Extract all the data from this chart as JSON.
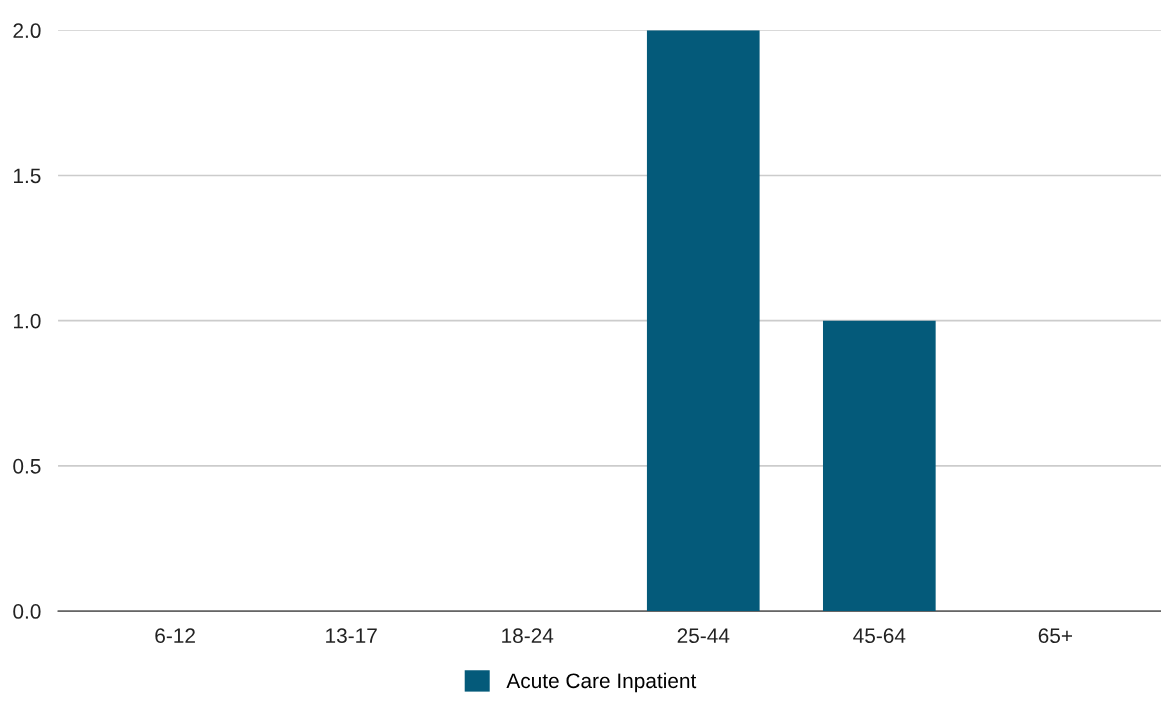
{
  "chart_data": {
    "type": "bar",
    "categories": [
      "6-12",
      "13-17",
      "18-24",
      "25-44",
      "45-64",
      "65+"
    ],
    "series": [
      {
        "name": "Acute Care Inpatient",
        "color": "#045a7a",
        "values": [
          0,
          0,
          0,
          2,
          1,
          0
        ]
      }
    ],
    "ylim": [
      0,
      2
    ],
    "yticks": [
      {
        "value": 0,
        "label": "0.0"
      },
      {
        "value": 0.5,
        "label": "0.5"
      },
      {
        "value": 1,
        "label": "1.0"
      },
      {
        "value": 1.5,
        "label": "1.5"
      },
      {
        "value": 2,
        "label": "2.0"
      }
    ],
    "grid": "y",
    "legend": "bottom"
  }
}
